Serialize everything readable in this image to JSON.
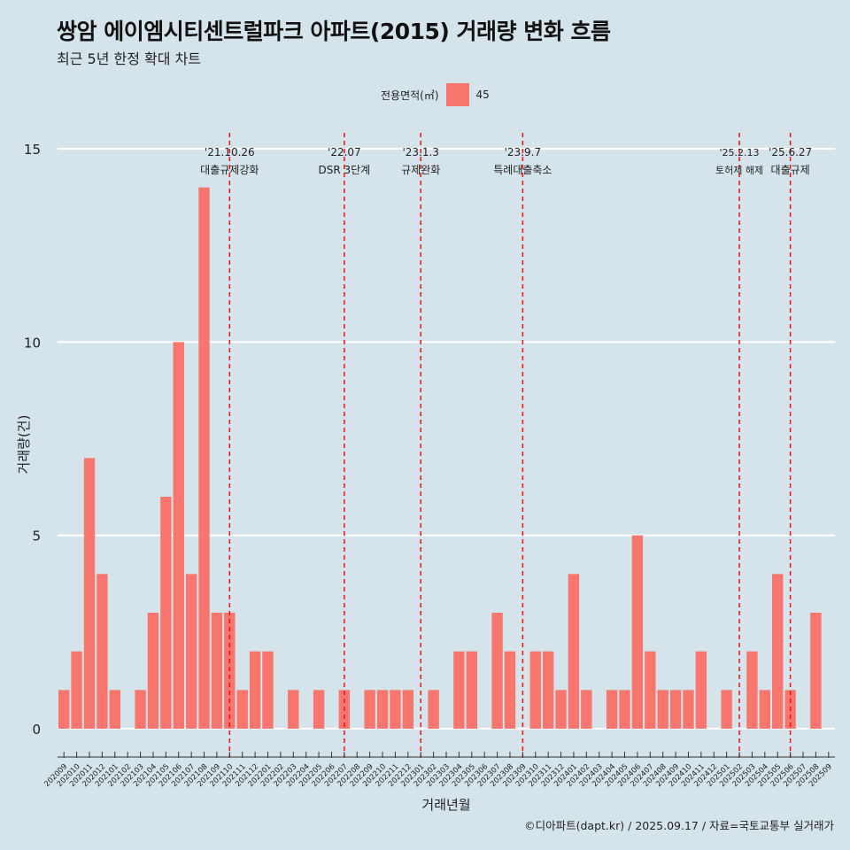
{
  "title": "쌍암 에이엠시티센트럴파크 아파트(2015) 거래량 변화 흐름",
  "subtitle": "최근 5년 한정 확대 차트",
  "caption": "©디아파트(dapt.kr) / 2025.09.17 / 자료=국토교통부 실거래가",
  "legend": {
    "title": "전용면적(㎡)",
    "items": [
      {
        "label": "45",
        "color": "#f8766d"
      }
    ]
  },
  "colors": {
    "background": "#d5e3ea",
    "bar": "#f8766d",
    "event_line": "#ee1111"
  },
  "chart_data": {
    "type": "bar",
    "xlabel": "거래년월",
    "ylabel": "거래량(건)",
    "ylim": [
      0,
      15
    ],
    "yticks": [
      0,
      5,
      10,
      15
    ],
    "categories": [
      "202009",
      "202010",
      "202011",
      "202012",
      "202101",
      "202102",
      "202103",
      "202104",
      "202105",
      "202106",
      "202107",
      "202108",
      "202109",
      "202110",
      "202111",
      "202112",
      "202201",
      "202202",
      "202203",
      "202204",
      "202205",
      "202206",
      "202207",
      "202208",
      "202209",
      "202210",
      "202211",
      "202212",
      "202301",
      "202302",
      "202303",
      "202304",
      "202305",
      "202306",
      "202307",
      "202308",
      "202309",
      "202310",
      "202311",
      "202312",
      "202401",
      "202402",
      "202403",
      "202404",
      "202405",
      "202406",
      "202407",
      "202408",
      "202409",
      "202410",
      "202411",
      "202412",
      "202501",
      "202502",
      "202503",
      "202504",
      "202505",
      "202506",
      "202507",
      "202508",
      "202509"
    ],
    "series": [
      {
        "name": "45",
        "values": [
          1,
          2,
          7,
          4,
          1,
          0,
          1,
          3,
          6,
          10,
          4,
          14,
          3,
          3,
          1,
          2,
          2,
          0,
          1,
          0,
          1,
          0,
          1,
          0,
          1,
          1,
          1,
          1,
          0,
          1,
          0,
          2,
          2,
          0,
          3,
          2,
          0,
          2,
          2,
          1,
          4,
          1,
          0,
          1,
          1,
          5,
          2,
          1,
          1,
          1,
          2,
          0,
          1,
          0,
          2,
          1,
          4,
          1,
          0,
          3,
          0
        ]
      }
    ],
    "events": [
      {
        "x": "202110",
        "date": "'21.10.26",
        "label": "대출규제강화"
      },
      {
        "x": "202207",
        "date": "'22.07",
        "label": "DSR 3단계"
      },
      {
        "x": "202301",
        "date": "'23.1.3",
        "label": "규제완화"
      },
      {
        "x": "202309",
        "date": "'23.9.7",
        "label": "특례대출축소"
      },
      {
        "x": "202502",
        "date": "'25.2.13",
        "label": "토허제 해제"
      },
      {
        "x": "202506",
        "date": "'25.6.27",
        "label": "대출규제"
      }
    ],
    "grid": true
  }
}
